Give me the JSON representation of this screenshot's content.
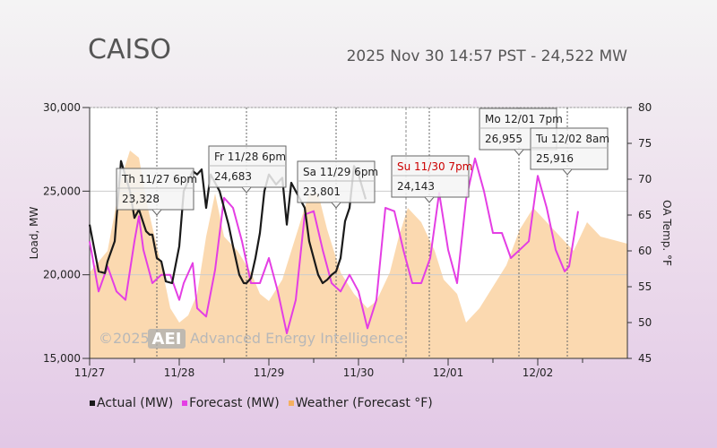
{
  "header": {
    "title": "CAISO",
    "status": "2025 Nov 30 14:57 PST - 24,522 MW"
  },
  "legend": {
    "actual": "Actual (MW)",
    "forecast": "Forecast (MW)",
    "weather": "Weather (Forecast °F)"
  },
  "watermark": {
    "year": "©2025",
    "logo": "AEI",
    "company": "Advanced Energy Intelligence"
  },
  "colors": {
    "actual": "#1a1a1a",
    "forecast": "#e43ee4",
    "weather": "#fbd9b0",
    "weather_legend": "#f5b060",
    "highlight": "#cc0000"
  },
  "chart_data": {
    "type": "line",
    "xlim": [
      0,
      6
    ],
    "x_ticks": [
      0,
      1,
      2,
      3,
      4,
      5
    ],
    "x_tick_labels": [
      "11/27",
      "11/28",
      "11/29",
      "11/30",
      "12/01",
      "12/02"
    ],
    "ylabel": "Load, MW",
    "ylim": [
      15000,
      30000
    ],
    "y_ticks": [
      15000,
      20000,
      25000,
      30000
    ],
    "y_tick_labels": [
      "15,000",
      "20,000",
      "25,000",
      "30,000"
    ],
    "y2label": "OA Temp. °F",
    "y2lim": [
      45,
      80
    ],
    "y2_ticks": [
      45,
      50,
      55,
      60,
      65,
      70,
      75,
      80
    ],
    "series": [
      {
        "name": "Actual (MW)",
        "x": [
          0,
          0.1,
          0.17,
          0.2,
          0.28,
          0.35,
          0.45,
          0.5,
          0.55,
          0.63,
          0.67,
          0.7,
          0.75,
          0.8,
          0.85,
          0.92,
          1.0,
          1.05,
          1.15,
          1.2,
          1.25,
          1.3,
          1.35,
          1.4,
          1.45,
          1.5,
          1.55,
          1.6,
          1.67,
          1.72,
          1.75,
          1.8,
          1.85,
          1.9,
          1.95,
          2.0,
          2.08,
          2.15,
          2.2,
          2.25,
          2.35,
          2.4,
          2.45,
          2.5,
          2.55,
          2.6,
          2.65,
          2.7,
          2.75,
          2.8,
          2.85,
          2.9,
          2.95,
          3.0,
          3.08,
          3.15,
          3.2,
          3.25,
          3.3,
          3.35,
          3.4,
          3.45,
          3.5,
          3.53,
          3.6
        ],
        "values": [
          23000,
          20200,
          20100,
          20800,
          22000,
          26800,
          25000,
          23400,
          23900,
          22600,
          22400,
          22400,
          21000,
          20800,
          19600,
          19500,
          21700,
          25000,
          26200,
          26000,
          26300,
          24000,
          26000,
          25500,
          25000,
          24000,
          23000,
          21700,
          20000,
          19500,
          19500,
          19800,
          21000,
          22500,
          25000,
          26000,
          25400,
          25800,
          23000,
          25500,
          24500,
          24000,
          22000,
          21000,
          20000,
          19500,
          19700,
          20000,
          20200,
          21000,
          23200,
          24000,
          26500,
          26000,
          24522,
          null,
          null,
          null,
          null,
          null,
          null,
          null,
          null,
          null,
          null
        ]
      },
      {
        "name": "Forecast (MW)",
        "x": [
          0,
          0.1,
          0.2,
          0.3,
          0.4,
          0.5,
          0.55,
          0.6,
          0.7,
          0.8,
          0.9,
          1.0,
          1.05,
          1.15,
          1.2,
          1.3,
          1.4,
          1.5,
          1.6,
          1.7,
          1.8,
          1.9,
          2.0,
          2.1,
          2.2,
          2.3,
          2.4,
          2.5,
          2.6,
          2.7,
          2.8,
          2.9,
          3.0,
          3.1,
          3.2,
          3.3,
          3.4,
          3.5,
          3.6,
          3.7,
          3.8,
          3.9,
          4.0,
          4.1,
          4.2,
          4.3,
          4.4,
          4.5,
          4.6,
          4.7,
          4.8,
          4.9,
          5.0,
          5.1,
          5.2,
          5.3,
          5.35,
          5.45,
          5.55,
          5.6,
          5.65,
          5.7
        ],
        "values": [
          22000,
          19000,
          20500,
          19000,
          18500,
          22000,
          23500,
          21500,
          19500,
          20000,
          20000,
          18500,
          19500,
          20700,
          18000,
          17500,
          20300,
          24600,
          24000,
          22000,
          19500,
          19500,
          21000,
          19000,
          16500,
          18500,
          23600,
          23800,
          21500,
          19500,
          19000,
          20000,
          19000,
          16800,
          18500,
          24000,
          23800,
          21500,
          19500,
          19500,
          21000,
          24900,
          21500,
          19500,
          24500,
          26955,
          25000,
          22500,
          22500,
          21000,
          21500,
          22000,
          25916,
          24000,
          21500,
          20200,
          20500,
          23800,
          null,
          null,
          null,
          null
        ]
      },
      {
        "name": "Weather (Forecast °F)",
        "x": [
          0,
          0.2,
          0.35,
          0.45,
          0.55,
          0.65,
          0.8,
          0.9,
          1.0,
          1.1,
          1.2,
          1.3,
          1.4,
          1.5,
          1.65,
          1.8,
          1.9,
          2.0,
          2.15,
          2.3,
          2.45,
          2.55,
          2.65,
          2.8,
          2.95,
          3.1,
          3.2,
          3.35,
          3.45,
          3.55,
          3.7,
          3.85,
          3.95,
          4.1,
          4.2,
          4.35,
          4.5,
          4.65,
          4.8,
          4.95,
          5.1,
          5.25,
          5.4,
          5.55,
          5.7,
          6.0
        ],
        "values": [
          57,
          60,
          70,
          74,
          73,
          66,
          58,
          52,
          50,
          51,
          54,
          62,
          68,
          62,
          60,
          57,
          54,
          53,
          56,
          62,
          68,
          68,
          63,
          57,
          54,
          52,
          53,
          57,
          62,
          66,
          64,
          60,
          56,
          54,
          50,
          52,
          55,
          58,
          63,
          66,
          64,
          62,
          60,
          64,
          62,
          61
        ]
      }
    ],
    "annotations": [
      {
        "label": "Th 11/27 6pm",
        "value": "23,328",
        "x": 0.75,
        "y": 23328,
        "highlight": false
      },
      {
        "label": "Fr 11/28 6pm",
        "value": "24,683",
        "x": 1.75,
        "y": 24683,
        "highlight": false
      },
      {
        "label": "Sa 11/29 6pm",
        "value": "23,801",
        "x": 2.75,
        "y": 23801,
        "highlight": false
      },
      {
        "label": "Su 11/30 7pm",
        "value": "24,143",
        "x": 3.79,
        "y": 24143,
        "highlight": true
      },
      {
        "label": "Mo 12/01 7pm",
        "value": "26,955",
        "x": 4.79,
        "y": 26955,
        "highlight": false
      },
      {
        "label": "Tu 12/02 8am",
        "value": "25,916",
        "x": 5.33,
        "y": 25916,
        "highlight": false
      }
    ]
  }
}
